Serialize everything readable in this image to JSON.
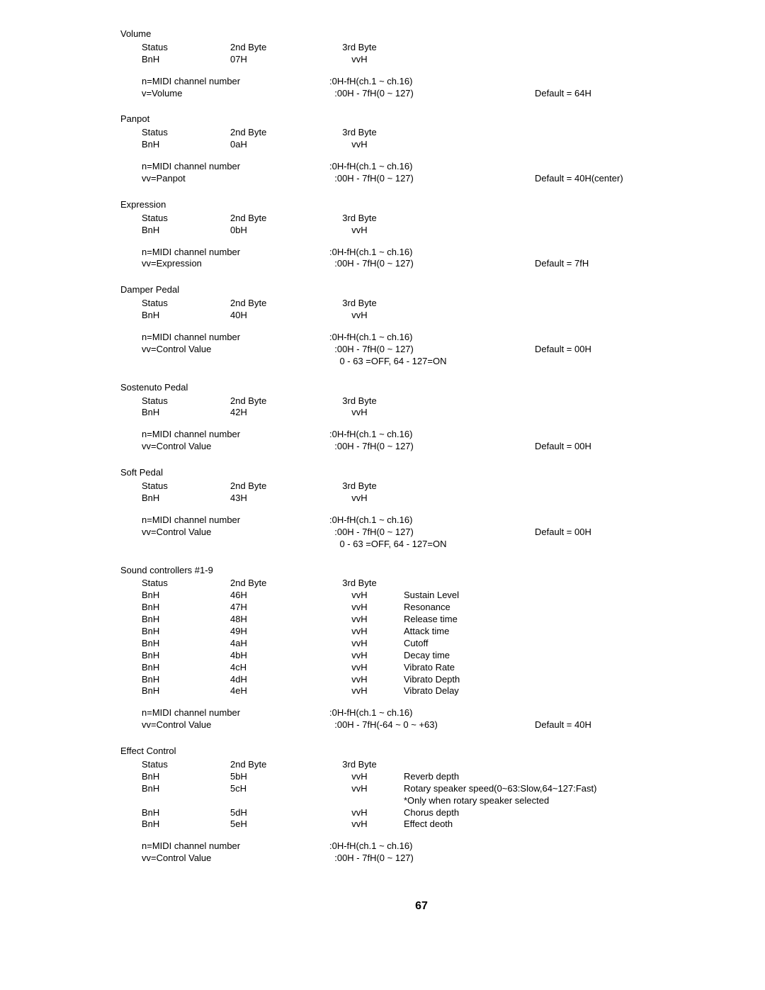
{
  "pageNumber": "67",
  "sections": [
    {
      "title": "Volume",
      "rows": [
        {
          "c1": "Status",
          "c2": "2nd Byte",
          "c3": "3rd Byte"
        },
        {
          "c1": "BnH",
          "c2": "07H",
          "c3": "vvH"
        }
      ],
      "params": [
        {
          "p": "n=MIDI channel number",
          "r": ":0H-fH(ch.1 ~ ch.16)",
          "d": ""
        },
        {
          "p": "v=Volume",
          "r": "  :00H - 7fH(0 ~ 127)",
          "d": "Default = 64H"
        }
      ]
    },
    {
      "title": "Panpot",
      "rows": [
        {
          "c1": "Status",
          "c2": "2nd Byte",
          "c3": "3rd Byte"
        },
        {
          "c1": "BnH",
          "c2": "0aH",
          "c3": "vvH"
        }
      ],
      "params": [
        {
          "p": "n=MIDI channel number",
          "r": ":0H-fH(ch.1 ~ ch.16)",
          "d": ""
        },
        {
          "p": "vv=Panpot",
          "r": "  :00H - 7fH(0 ~ 127)",
          "d": "Default = 40H(center)"
        }
      ]
    },
    {
      "title": "Expression",
      "rows": [
        {
          "c1": "Status",
          "c2": "2nd Byte",
          "c3": "3rd Byte"
        },
        {
          "c1": "BnH",
          "c2": "0bH",
          "c3": "vvH"
        }
      ],
      "params": [
        {
          "p": "n=MIDI channel number",
          "r": ":0H-fH(ch.1 ~ ch.16)",
          "d": ""
        },
        {
          "p": "vv=Expression",
          "r": "  :00H - 7fH(0 ~ 127)",
          "d": "Default = 7fH"
        }
      ]
    },
    {
      "title": "Damper Pedal",
      "rows": [
        {
          "c1": "Status",
          "c2": "2nd Byte",
          "c3": "3rd Byte"
        },
        {
          "c1": "BnH",
          "c2": "40H",
          "c3": "vvH"
        }
      ],
      "params": [
        {
          "p": "n=MIDI channel number",
          "r": ":0H-fH(ch.1 ~ ch.16)",
          "d": ""
        },
        {
          "p": "vv=Control Value",
          "r": "  :00H - 7fH(0 ~ 127)",
          "d": "Default = 00H"
        },
        {
          "p": "",
          "r": "    0 - 63 =OFF, 64 - 127=ON",
          "d": ""
        }
      ]
    },
    {
      "title": "Sostenuto Pedal",
      "rows": [
        {
          "c1": "Status",
          "c2": "2nd Byte",
          "c3": "3rd Byte"
        },
        {
          "c1": "BnH",
          "c2": "42H",
          "c3": "vvH"
        }
      ],
      "params": [
        {
          "p": "n=MIDI channel number",
          "r": ":0H-fH(ch.1 ~ ch.16)",
          "d": ""
        },
        {
          "p": "vv=Control Value",
          "r": "  :00H - 7fH(0 ~ 127)",
          "d": "Default = 00H"
        }
      ]
    },
    {
      "title": "Soft Pedal",
      "rows": [
        {
          "c1": "Status",
          "c2": "2nd Byte",
          "c3": "3rd Byte"
        },
        {
          "c1": "BnH",
          "c2": "43H",
          "c3": "vvH"
        }
      ],
      "params": [
        {
          "p": "n=MIDI channel number",
          "r": ":0H-fH(ch.1 ~ ch.16)",
          "d": ""
        },
        {
          "p": "vv=Control Value",
          "r": "  :00H - 7fH(0 ~ 127)",
          "d": "Default = 00H"
        },
        {
          "p": "",
          "r": "    0 - 63 =OFF, 64 - 127=ON",
          "d": ""
        }
      ]
    },
    {
      "title": "Sound controllers #1-9",
      "rows": [
        {
          "c1": "Status",
          "c2": "2nd Byte",
          "c3": "3rd Byte",
          "c4": ""
        },
        {
          "c1": "BnH",
          "c2": "46H",
          "c3": "vvH",
          "c4": "Sustain Level"
        },
        {
          "c1": "BnH",
          "c2": "47H",
          "c3": "vvH",
          "c4": "Resonance"
        },
        {
          "c1": "BnH",
          "c2": "48H",
          "c3": "vvH",
          "c4": "Release time"
        },
        {
          "c1": "BnH",
          "c2": "49H",
          "c3": "vvH",
          "c4": "Attack time"
        },
        {
          "c1": "BnH",
          "c2": "4aH",
          "c3": "vvH",
          "c4": "Cutoff"
        },
        {
          "c1": "BnH",
          "c2": "4bH",
          "c3": "vvH",
          "c4": "Decay time"
        },
        {
          "c1": "BnH",
          "c2": "4cH",
          "c3": "vvH",
          "c4": "Vibrato Rate"
        },
        {
          "c1": "BnH",
          "c2": "4dH",
          "c3": "vvH",
          "c4": "Vibrato Depth"
        },
        {
          "c1": "BnH",
          "c2": "4eH",
          "c3": "vvH",
          "c4": "Vibrato Delay"
        }
      ],
      "params": [
        {
          "p": "n=MIDI channel number",
          "r": ":0H-fH(ch.1 ~ ch.16)",
          "d": ""
        },
        {
          "p": "vv=Control Value",
          "r": "  :00H - 7fH(-64 ~ 0 ~ +63)",
          "d": "Default = 40H"
        }
      ]
    },
    {
      "title": "Effect Control",
      "rows": [
        {
          "c1": "Status",
          "c2": "2nd Byte",
          "c3": "3rd Byte",
          "c4": ""
        },
        {
          "c1": "BnH",
          "c2": "5bH",
          "c3": "vvH",
          "c4": "Reverb depth"
        },
        {
          "c1": "BnH",
          "c2": "5cH",
          "c3": "vvH",
          "c4": "Rotary speaker speed(0~63:Slow,64~127:Fast)"
        },
        {
          "c1": "",
          "c2": "",
          "c3": "",
          "c4": "*Only when rotary speaker selected"
        },
        {
          "c1": "BnH",
          "c2": "5dH",
          "c3": "vvH",
          "c4": "Chorus depth"
        },
        {
          "c1": "BnH",
          "c2": "5eH",
          "c3": "vvH",
          "c4": "Effect deoth"
        }
      ],
      "params": [
        {
          "p": "n=MIDI channel number",
          "r": ":0H-fH(ch.1 ~ ch.16)",
          "d": ""
        },
        {
          "p": "vv=Control Value",
          "r": "  :00H - 7fH(0 ~ 127)",
          "d": ""
        }
      ]
    }
  ]
}
